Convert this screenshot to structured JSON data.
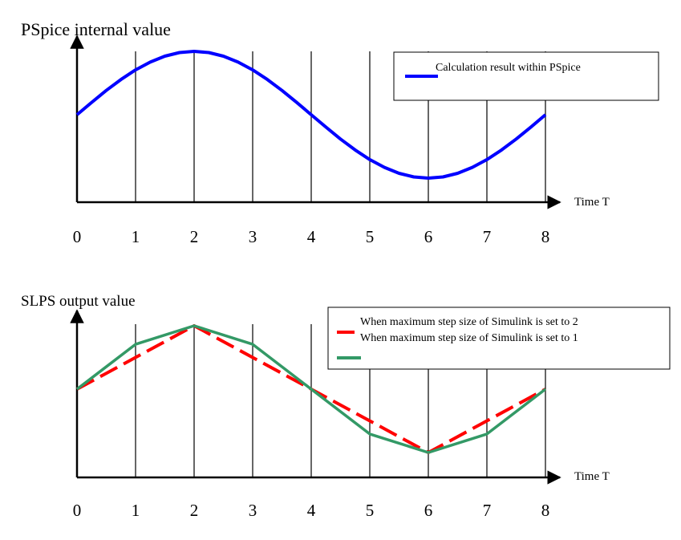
{
  "chart_data": [
    {
      "type": "line",
      "ylabel": "PSpice internal value",
      "xlabel": "Time T",
      "x_ticks": [
        "0",
        "1",
        "2",
        "3",
        "4",
        "5",
        "6",
        "7",
        "8"
      ],
      "xlim": [
        0,
        8
      ],
      "ylim": [
        -1.4,
        1.4
      ],
      "grid": "vertical lines at each integer time",
      "legend_placement": "top-right",
      "series": [
        {
          "name": "Calculation result within PSpice",
          "color": "#0000ff",
          "style": "solid smooth curve",
          "x": [
            0,
            0.25,
            0.5,
            0.75,
            1,
            1.25,
            1.5,
            1.75,
            2,
            2.25,
            2.5,
            2.75,
            3,
            3.25,
            3.5,
            3.75,
            4,
            4.25,
            4.5,
            4.75,
            5,
            5.25,
            5.5,
            5.75,
            6,
            6.25,
            6.5,
            6.75,
            7,
            7.25,
            7.5,
            7.75,
            8
          ],
          "y": [
            0,
            0.195,
            0.383,
            0.556,
            0.707,
            0.831,
            0.924,
            0.981,
            1.0,
            0.981,
            0.924,
            0.831,
            0.707,
            0.556,
            0.383,
            0.195,
            0,
            -0.195,
            -0.383,
            -0.556,
            -0.707,
            -0.831,
            -0.924,
            -0.981,
            -1.0,
            -0.981,
            -0.924,
            -0.831,
            -0.707,
            -0.556,
            -0.383,
            -0.195,
            0
          ]
        }
      ]
    },
    {
      "type": "line",
      "ylabel": "SLPS output value",
      "xlabel": "Time T",
      "x_ticks": [
        "0",
        "1",
        "2",
        "3",
        "4",
        "5",
        "6",
        "7",
        "8"
      ],
      "xlim": [
        0,
        8
      ],
      "ylim": [
        -1.4,
        1.4
      ],
      "grid": "vertical lines at each integer time",
      "legend_placement": "top-right",
      "legend_entries": [
        "When maximum step size of Simulink is set to 2",
        "When maximum step size of Simulink is set to 1"
      ],
      "series": [
        {
          "color": "#ff0000",
          "style": "dashed",
          "x": [
            0,
            2,
            4,
            6,
            8
          ],
          "y": [
            0,
            1.0,
            0,
            -1.0,
            0
          ]
        },
        {
          "color": "#339966",
          "style": "solid",
          "x": [
            0,
            1,
            2,
            3,
            4,
            5,
            6,
            7,
            8
          ],
          "y": [
            0,
            0.707,
            1.0,
            0.707,
            0,
            -0.707,
            -1.0,
            -0.707,
            0
          ]
        }
      ]
    }
  ]
}
